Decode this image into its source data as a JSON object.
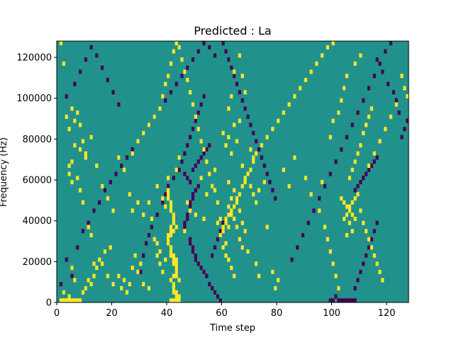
{
  "chart_data": {
    "type": "heatmap",
    "title": "Predicted : La",
    "xlabel": "Time step",
    "ylabel": "Frequency (Hz)",
    "xlim": [
      0,
      128
    ],
    "ylim": [
      0,
      128000
    ],
    "xticks": [
      0,
      20,
      40,
      60,
      80,
      100,
      120
    ],
    "yticks": [
      0,
      20000,
      40000,
      60000,
      80000,
      100000,
      120000
    ],
    "n_time_steps": 128,
    "n_freq_bins": 64,
    "bin_height_hz": 2000,
    "background_value": 0.5,
    "colormap": {
      "low": "#440154",
      "mid": "#21918c",
      "high": "#fde725"
    },
    "cells_high": [
      [
        1,
        63
      ],
      [
        2,
        58
      ],
      [
        3,
        45
      ],
      [
        4,
        42
      ],
      [
        5,
        47
      ],
      [
        6,
        44
      ],
      [
        7,
        46
      ],
      [
        8,
        43
      ],
      [
        9,
        39
      ],
      [
        10,
        35
      ],
      [
        1,
        0
      ],
      [
        2,
        0
      ],
      [
        3,
        0
      ],
      [
        4,
        0
      ],
      [
        5,
        0
      ],
      [
        6,
        0
      ],
      [
        7,
        0
      ],
      [
        8,
        0
      ],
      [
        2,
        2
      ],
      [
        4,
        1
      ],
      [
        5,
        8
      ],
      [
        6,
        5
      ],
      [
        9,
        2
      ],
      [
        10,
        3
      ],
      [
        11,
        5
      ],
      [
        12,
        4
      ],
      [
        13,
        6
      ],
      [
        14,
        8
      ],
      [
        16,
        9
      ],
      [
        17,
        12
      ],
      [
        4,
        33
      ],
      [
        5,
        29
      ],
      [
        7,
        30
      ],
      [
        8,
        27
      ],
      [
        9,
        24
      ],
      [
        11,
        18
      ],
      [
        12,
        16
      ],
      [
        13,
        9
      ],
      [
        15,
        10
      ],
      [
        19,
        13
      ],
      [
        18,
        6
      ],
      [
        20,
        4
      ],
      [
        22,
        6
      ],
      [
        23,
        3
      ],
      [
        24,
        5
      ],
      [
        25,
        2
      ],
      [
        26,
        4
      ],
      [
        27,
        8
      ],
      [
        28,
        11
      ],
      [
        29,
        7
      ],
      [
        30,
        9
      ],
      [
        31,
        4
      ],
      [
        33,
        3
      ],
      [
        26,
        26
      ],
      [
        27,
        22
      ],
      [
        29,
        24
      ],
      [
        31,
        21
      ],
      [
        33,
        24
      ],
      [
        35,
        15
      ],
      [
        36,
        11
      ],
      [
        37,
        9
      ],
      [
        38,
        7
      ],
      [
        34,
        20
      ],
      [
        40,
        27
      ],
      [
        40,
        26
      ],
      [
        40,
        25
      ],
      [
        41,
        24
      ],
      [
        41,
        23
      ],
      [
        41,
        22
      ],
      [
        42,
        21
      ],
      [
        42,
        20
      ],
      [
        42,
        19
      ],
      [
        41,
        18
      ],
      [
        40,
        15
      ],
      [
        40,
        14
      ],
      [
        41,
        13
      ],
      [
        41,
        12
      ],
      [
        42,
        11
      ],
      [
        42,
        10
      ],
      [
        42,
        9
      ],
      [
        43,
        8
      ],
      [
        43,
        7
      ],
      [
        42,
        6
      ],
      [
        41,
        16
      ],
      [
        42,
        17
      ],
      [
        43,
        18
      ],
      [
        41,
        17
      ],
      [
        40,
        16
      ],
      [
        41,
        11
      ],
      [
        43,
        10
      ],
      [
        43,
        9
      ],
      [
        43,
        6
      ],
      [
        44,
        5
      ],
      [
        41,
        5
      ],
      [
        42,
        4
      ],
      [
        42,
        3
      ],
      [
        43,
        2
      ],
      [
        43,
        1
      ],
      [
        42,
        0
      ],
      [
        41,
        0
      ],
      [
        43,
        0
      ],
      [
        44,
        0
      ],
      [
        44,
        1
      ],
      [
        42,
        2
      ],
      [
        36,
        28
      ],
      [
        38,
        25
      ],
      [
        39,
        23
      ],
      [
        40,
        30
      ],
      [
        43,
        32
      ],
      [
        44,
        35
      ],
      [
        39,
        10
      ],
      [
        37,
        12
      ],
      [
        36,
        14
      ],
      [
        46,
        17
      ],
      [
        47,
        24
      ],
      [
        48,
        22
      ],
      [
        50,
        21
      ],
      [
        52,
        30
      ],
      [
        53,
        20
      ],
      [
        54,
        26
      ],
      [
        56,
        28
      ],
      [
        57,
        32
      ],
      [
        58,
        19
      ],
      [
        59,
        16
      ],
      [
        60,
        13
      ],
      [
        61,
        11
      ],
      [
        62,
        23
      ],
      [
        63,
        21
      ],
      [
        64,
        20
      ],
      [
        65,
        18
      ],
      [
        66,
        15
      ],
      [
        67,
        13
      ],
      [
        68,
        17
      ],
      [
        61,
        14
      ],
      [
        62,
        10
      ],
      [
        63,
        8
      ],
      [
        64,
        6
      ],
      [
        62,
        29
      ],
      [
        63,
        25
      ],
      [
        64,
        27
      ],
      [
        65,
        24
      ],
      [
        66,
        22
      ],
      [
        67,
        33
      ],
      [
        68,
        30
      ],
      [
        70,
        28
      ],
      [
        71,
        26
      ],
      [
        72,
        24
      ],
      [
        73,
        27
      ],
      [
        75,
        29
      ],
      [
        76,
        18
      ],
      [
        78,
        7
      ],
      [
        79,
        3
      ],
      [
        80,
        5
      ],
      [
        60,
        41
      ],
      [
        61,
        38
      ],
      [
        62,
        40
      ],
      [
        63,
        36
      ],
      [
        64,
        43
      ],
      [
        65,
        39
      ],
      [
        67,
        19
      ],
      [
        69,
        12
      ],
      [
        72,
        9
      ],
      [
        73,
        6
      ],
      [
        66,
        60
      ],
      [
        67,
        55
      ],
      [
        62,
        47
      ],
      [
        63,
        50
      ],
      [
        64,
        56
      ],
      [
        66,
        44
      ],
      [
        68,
        51
      ],
      [
        70,
        37
      ],
      [
        71,
        34
      ],
      [
        82,
        32
      ],
      [
        84,
        28
      ],
      [
        86,
        35
      ],
      [
        90,
        30
      ],
      [
        92,
        26
      ],
      [
        95,
        22
      ],
      [
        96,
        29
      ],
      [
        97,
        18
      ],
      [
        98,
        15
      ],
      [
        99,
        12
      ],
      [
        100,
        9
      ],
      [
        101,
        6
      ],
      [
        102,
        3
      ],
      [
        103,
        25
      ],
      [
        104,
        24
      ],
      [
        105,
        23
      ],
      [
        106,
        22
      ],
      [
        107,
        21
      ],
      [
        108,
        20
      ],
      [
        104,
        20
      ],
      [
        105,
        21
      ],
      [
        106,
        19
      ],
      [
        107,
        17
      ],
      [
        106,
        23
      ],
      [
        107,
        24
      ],
      [
        105,
        16
      ],
      [
        108,
        25
      ],
      [
        109,
        26
      ],
      [
        110,
        22
      ],
      [
        111,
        19
      ],
      [
        112,
        17
      ],
      [
        113,
        15
      ],
      [
        114,
        13
      ],
      [
        115,
        11
      ],
      [
        116,
        9
      ],
      [
        117,
        7
      ],
      [
        118,
        5
      ],
      [
        106,
        30
      ],
      [
        107,
        32
      ],
      [
        108,
        34
      ],
      [
        109,
        36
      ],
      [
        110,
        38
      ],
      [
        111,
        41
      ],
      [
        112,
        43
      ],
      [
        113,
        45
      ],
      [
        114,
        47
      ],
      [
        99,
        40
      ],
      [
        100,
        44
      ],
      [
        102,
        46
      ],
      [
        103,
        49
      ],
      [
        104,
        52
      ],
      [
        105,
        55
      ],
      [
        108,
        58
      ],
      [
        110,
        60
      ],
      [
        4,
        31
      ],
      [
        5,
        34
      ],
      [
        6,
        38
      ],
      [
        8,
        37
      ],
      [
        10,
        36
      ],
      [
        12,
        40
      ],
      [
        14,
        33
      ],
      [
        16,
        28
      ],
      [
        18,
        25
      ],
      [
        20,
        22
      ],
      [
        22,
        35
      ],
      [
        24,
        32
      ],
      [
        27,
        36
      ],
      [
        29,
        39
      ],
      [
        31,
        41
      ],
      [
        33,
        43
      ],
      [
        35,
        45
      ],
      [
        37,
        47
      ],
      [
        38,
        50
      ],
      [
        39,
        53
      ],
      [
        40,
        55
      ],
      [
        41,
        58
      ],
      [
        42,
        61
      ],
      [
        43,
        63
      ],
      [
        44,
        62
      ],
      [
        45,
        59
      ],
      [
        46,
        56
      ],
      [
        47,
        54
      ],
      [
        48,
        51
      ],
      [
        49,
        48
      ],
      [
        50,
        45
      ],
      [
        51,
        42
      ],
      [
        52,
        39
      ],
      [
        53,
        37
      ],
      [
        54,
        34
      ],
      [
        55,
        31
      ],
      [
        57,
        27
      ],
      [
        58,
        24
      ],
      [
        59,
        20
      ],
      [
        60,
        17
      ],
      [
        60,
        18
      ],
      [
        61,
        19
      ],
      [
        62,
        18
      ],
      [
        61,
        20
      ],
      [
        62,
        21
      ],
      [
        63,
        22
      ],
      [
        64,
        23
      ],
      [
        65,
        25
      ],
      [
        66,
        26
      ],
      [
        67,
        28
      ],
      [
        68,
        29
      ],
      [
        69,
        31
      ],
      [
        70,
        32
      ],
      [
        71,
        35
      ],
      [
        72,
        36
      ],
      [
        74,
        38
      ],
      [
        76,
        40
      ],
      [
        78,
        42
      ],
      [
        80,
        44
      ],
      [
        82,
        46
      ],
      [
        84,
        48
      ],
      [
        86,
        50
      ],
      [
        88,
        52
      ],
      [
        90,
        54
      ],
      [
        92,
        56
      ],
      [
        94,
        58
      ],
      [
        96,
        60
      ],
      [
        98,
        62
      ],
      [
        100,
        63
      ],
      [
        125,
        55
      ],
      [
        126,
        52
      ],
      [
        127,
        50
      ],
      [
        123,
        48
      ],
      [
        121,
        45
      ],
      [
        119,
        42
      ],
      [
        117,
        39
      ],
      [
        115,
        36
      ],
      [
        113,
        33
      ]
    ],
    "cells_low": [
      [
        1,
        4
      ],
      [
        2,
        2
      ],
      [
        3,
        10
      ],
      [
        5,
        6
      ],
      [
        7,
        13
      ],
      [
        9,
        17
      ],
      [
        11,
        19
      ],
      [
        13,
        22
      ],
      [
        15,
        24
      ],
      [
        17,
        27
      ],
      [
        19,
        29
      ],
      [
        21,
        31
      ],
      [
        23,
        33
      ],
      [
        25,
        35
      ],
      [
        27,
        37
      ],
      [
        29,
        39
      ],
      [
        31,
        41
      ],
      [
        33,
        43
      ],
      [
        35,
        45
      ],
      [
        37,
        47
      ],
      [
        39,
        49
      ],
      [
        41,
        51
      ],
      [
        43,
        53
      ],
      [
        45,
        55
      ],
      [
        47,
        57
      ],
      [
        49,
        59
      ],
      [
        51,
        61
      ],
      [
        53,
        63
      ],
      [
        55,
        62
      ],
      [
        57,
        60
      ],
      [
        30,
        7
      ],
      [
        31,
        11
      ],
      [
        32,
        14
      ],
      [
        33,
        16
      ],
      [
        34,
        18
      ],
      [
        36,
        21
      ],
      [
        38,
        24
      ],
      [
        39,
        26
      ],
      [
        40,
        28
      ],
      [
        42,
        30
      ],
      [
        44,
        32
      ],
      [
        45,
        34
      ],
      [
        46,
        36
      ],
      [
        47,
        38
      ],
      [
        48,
        40
      ],
      [
        49,
        42
      ],
      [
        50,
        44
      ],
      [
        51,
        46
      ],
      [
        52,
        48
      ],
      [
        53,
        50
      ],
      [
        46,
        18
      ],
      [
        46,
        19
      ],
      [
        47,
        20
      ],
      [
        47,
        21
      ],
      [
        48,
        23
      ],
      [
        48,
        24
      ],
      [
        49,
        25
      ],
      [
        49,
        26
      ],
      [
        50,
        27
      ],
      [
        51,
        28
      ],
      [
        48,
        15
      ],
      [
        48,
        14
      ],
      [
        49,
        13
      ],
      [
        49,
        12
      ],
      [
        50,
        11
      ],
      [
        50,
        10
      ],
      [
        51,
        9
      ],
      [
        52,
        8
      ],
      [
        53,
        7
      ],
      [
        54,
        6
      ],
      [
        46,
        31
      ],
      [
        47,
        30
      ],
      [
        48,
        29
      ],
      [
        49,
        32
      ],
      [
        50,
        33
      ],
      [
        51,
        34
      ],
      [
        52,
        35
      ],
      [
        53,
        36
      ],
      [
        54,
        37
      ],
      [
        55,
        38
      ],
      [
        55,
        4
      ],
      [
        56,
        3
      ],
      [
        57,
        2
      ],
      [
        58,
        1
      ],
      [
        59,
        0
      ],
      [
        56,
        11
      ],
      [
        57,
        13
      ],
      [
        58,
        15
      ],
      [
        59,
        17
      ],
      [
        60,
        19
      ],
      [
        85,
        10
      ],
      [
        87,
        13
      ],
      [
        89,
        16
      ],
      [
        91,
        19
      ],
      [
        93,
        22
      ],
      [
        95,
        25
      ],
      [
        97,
        28
      ],
      [
        99,
        31
      ],
      [
        101,
        34
      ],
      [
        103,
        37
      ],
      [
        105,
        40
      ],
      [
        107,
        43
      ],
      [
        109,
        46
      ],
      [
        111,
        49
      ],
      [
        113,
        52
      ],
      [
        115,
        55
      ],
      [
        117,
        58
      ],
      [
        119,
        61
      ],
      [
        121,
        63
      ],
      [
        108,
        3
      ],
      [
        109,
        5
      ],
      [
        110,
        7
      ],
      [
        111,
        9
      ],
      [
        112,
        11
      ],
      [
        113,
        13
      ],
      [
        114,
        15
      ],
      [
        115,
        17
      ],
      [
        116,
        19
      ],
      [
        102,
        0
      ],
      [
        103,
        0
      ],
      [
        104,
        0
      ],
      [
        105,
        0
      ],
      [
        106,
        0
      ],
      [
        107,
        0
      ],
      [
        108,
        0
      ],
      [
        101,
        1
      ],
      [
        100,
        0
      ],
      [
        99,
        0
      ],
      [
        108,
        27
      ],
      [
        109,
        28
      ],
      [
        110,
        29
      ],
      [
        111,
        30
      ],
      [
        112,
        31
      ],
      [
        113,
        32
      ],
      [
        114,
        33
      ],
      [
        115,
        34
      ],
      [
        116,
        35
      ],
      [
        125,
        40
      ],
      [
        126,
        42
      ],
      [
        127,
        44
      ],
      [
        124,
        46
      ],
      [
        123,
        49
      ],
      [
        122,
        51
      ],
      [
        120,
        53
      ],
      [
        118,
        56
      ],
      [
        116,
        59
      ],
      [
        60,
        63
      ],
      [
        61,
        61
      ],
      [
        62,
        59
      ],
      [
        63,
        57
      ],
      [
        64,
        55
      ],
      [
        65,
        53
      ],
      [
        66,
        51
      ],
      [
        67,
        49
      ],
      [
        68,
        47
      ],
      [
        69,
        45
      ],
      [
        70,
        43
      ],
      [
        71,
        41
      ],
      [
        72,
        39
      ],
      [
        73,
        37
      ],
      [
        74,
        35
      ],
      [
        75,
        33
      ],
      [
        76,
        31
      ],
      [
        77,
        29
      ],
      [
        78,
        27
      ],
      [
        79,
        25
      ],
      [
        3,
        50
      ],
      [
        6,
        53
      ],
      [
        8,
        56
      ],
      [
        10,
        59
      ],
      [
        12,
        62
      ],
      [
        14,
        60
      ],
      [
        16,
        57
      ],
      [
        18,
        54
      ],
      [
        20,
        51
      ],
      [
        22,
        48
      ]
    ]
  }
}
